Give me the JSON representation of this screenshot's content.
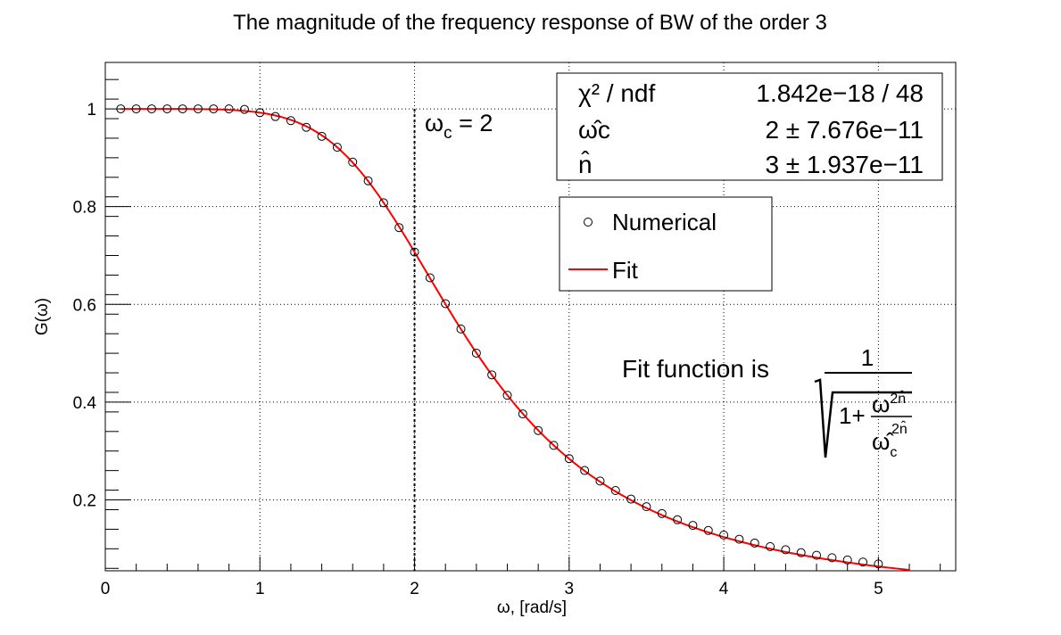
{
  "chart_data": {
    "type": "scatter",
    "title": "The magnitude of the frequency response of BW of the order 3",
    "xlabel": "ω, [rad/s]",
    "ylabel": "G(ω)",
    "xlim": [
      0,
      5.5
    ],
    "ylim": [
      0.055,
      1.095
    ],
    "x_ticks": [
      "0",
      "1",
      "2",
      "3",
      "4",
      "5"
    ],
    "y_ticks": [
      "0.2",
      "0.4",
      "0.6",
      "0.8",
      "1"
    ],
    "grid": true,
    "legend_position": "upper-right",
    "series": [
      {
        "name": "Numerical",
        "kind": "markers",
        "marker": "open-circle",
        "color": "#000000",
        "x": [
          0.1,
          0.2,
          0.3,
          0.4,
          0.5,
          0.6,
          0.7,
          0.8,
          0.9,
          1.0,
          1.1,
          1.2,
          1.3,
          1.4,
          1.5,
          1.6,
          1.7,
          1.8,
          1.9,
          2.0,
          2.1,
          2.2,
          2.3,
          2.4,
          2.5,
          2.6,
          2.7,
          2.8,
          2.9,
          3.0,
          3.1,
          3.2,
          3.3,
          3.4,
          3.5,
          3.6,
          3.7,
          3.8,
          3.9,
          4.0,
          4.1,
          4.2,
          4.3,
          4.4,
          4.5,
          4.6,
          4.7,
          4.8,
          4.9,
          5.0
        ],
        "y": [
          1.0,
          1.0,
          1.0,
          1.0,
          1.0,
          1.0,
          1.0,
          0.9999,
          0.9989,
          0.9923,
          0.9843,
          0.9759,
          0.9623,
          0.9439,
          0.9215,
          0.8911,
          0.8529,
          0.8078,
          0.7571,
          0.7071,
          0.6544,
          0.6015,
          0.5497,
          0.5003,
          0.4558,
          0.414,
          0.376,
          0.342,
          0.3116,
          0.2845,
          0.2602,
          0.2386,
          0.2192,
          0.2017,
          0.1861,
          0.1721,
          0.1594,
          0.1479,
          0.1375,
          0.128,
          0.1195,
          0.1117,
          0.1045,
          0.098,
          0.0921,
          0.0867,
          0.0817,
          0.0771,
          0.0728,
          0.0689
        ]
      },
      {
        "name": "Fit",
        "kind": "line",
        "color": "#ff0000",
        "function": "1/sqrt(1+(x/2)^6)",
        "x_range": [
          0.1,
          5.2
        ]
      }
    ],
    "annotations": {
      "cutoff": {
        "x": 2,
        "label_main": "ω",
        "label_sub": "c",
        "label_rest": " = 2"
      },
      "fit_formula": {
        "prefix": "Fit function is",
        "numerator": "1",
        "one_plus": "1+",
        "omega": "ω",
        "exp": "2n̂",
        "omega_c": "ω̂",
        "sub_c": "c"
      }
    },
    "stats": {
      "rows": [
        {
          "label": "χ² / ndf",
          "value": "1.842e−18 / 48"
        },
        {
          "label": "ω̂c",
          "value": "2 ± 7.676e−11"
        },
        {
          "label": "n̂",
          "value": "3 ± 1.937e−11"
        }
      ]
    },
    "legend": [
      {
        "label": "Numerical",
        "symbol": "open-circle",
        "color": "#000000"
      },
      {
        "label": "Fit",
        "symbol": "line",
        "color": "#ff0000"
      }
    ]
  }
}
